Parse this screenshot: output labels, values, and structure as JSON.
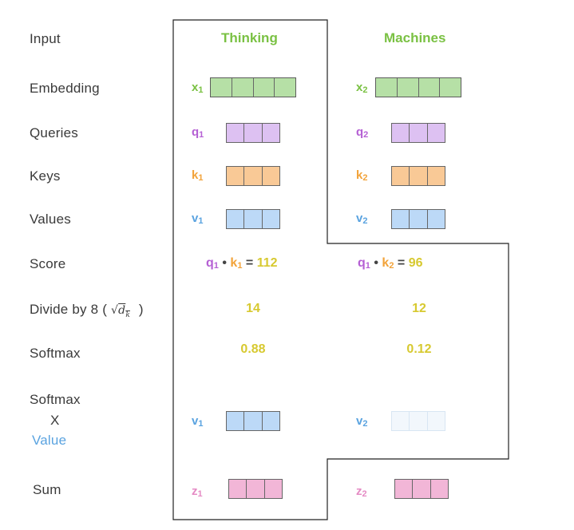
{
  "rows": {
    "input": "Input",
    "embedding": "Embedding",
    "queries": "Queries",
    "keys": "Keys",
    "values": "Values",
    "score": "Score",
    "divide": "Divide by 8 (",
    "divide_close": ")",
    "softmax": "Softmax",
    "softmax_x_1": "Softmax",
    "softmax_x_2": "X",
    "softmax_x_3": "Value",
    "sum": "Sum"
  },
  "words": [
    "Thinking",
    "Machines"
  ],
  "vars": {
    "x": "x",
    "q": "q",
    "k": "k",
    "v": "v",
    "z": "z",
    "sub1": "1",
    "sub2": "2"
  },
  "scores": {
    "op": "•",
    "eq": "=",
    "s1": "112",
    "s2": "96"
  },
  "divided": [
    "14",
    "12"
  ],
  "softmax": [
    "0.88",
    "0.12"
  ],
  "colors": {
    "green": "#7ac143",
    "purple": "#b560d4",
    "orange": "#f2a33a",
    "blue": "#5aa3e0",
    "pink": "#e58bc4",
    "yellow": "#d7c930"
  }
}
